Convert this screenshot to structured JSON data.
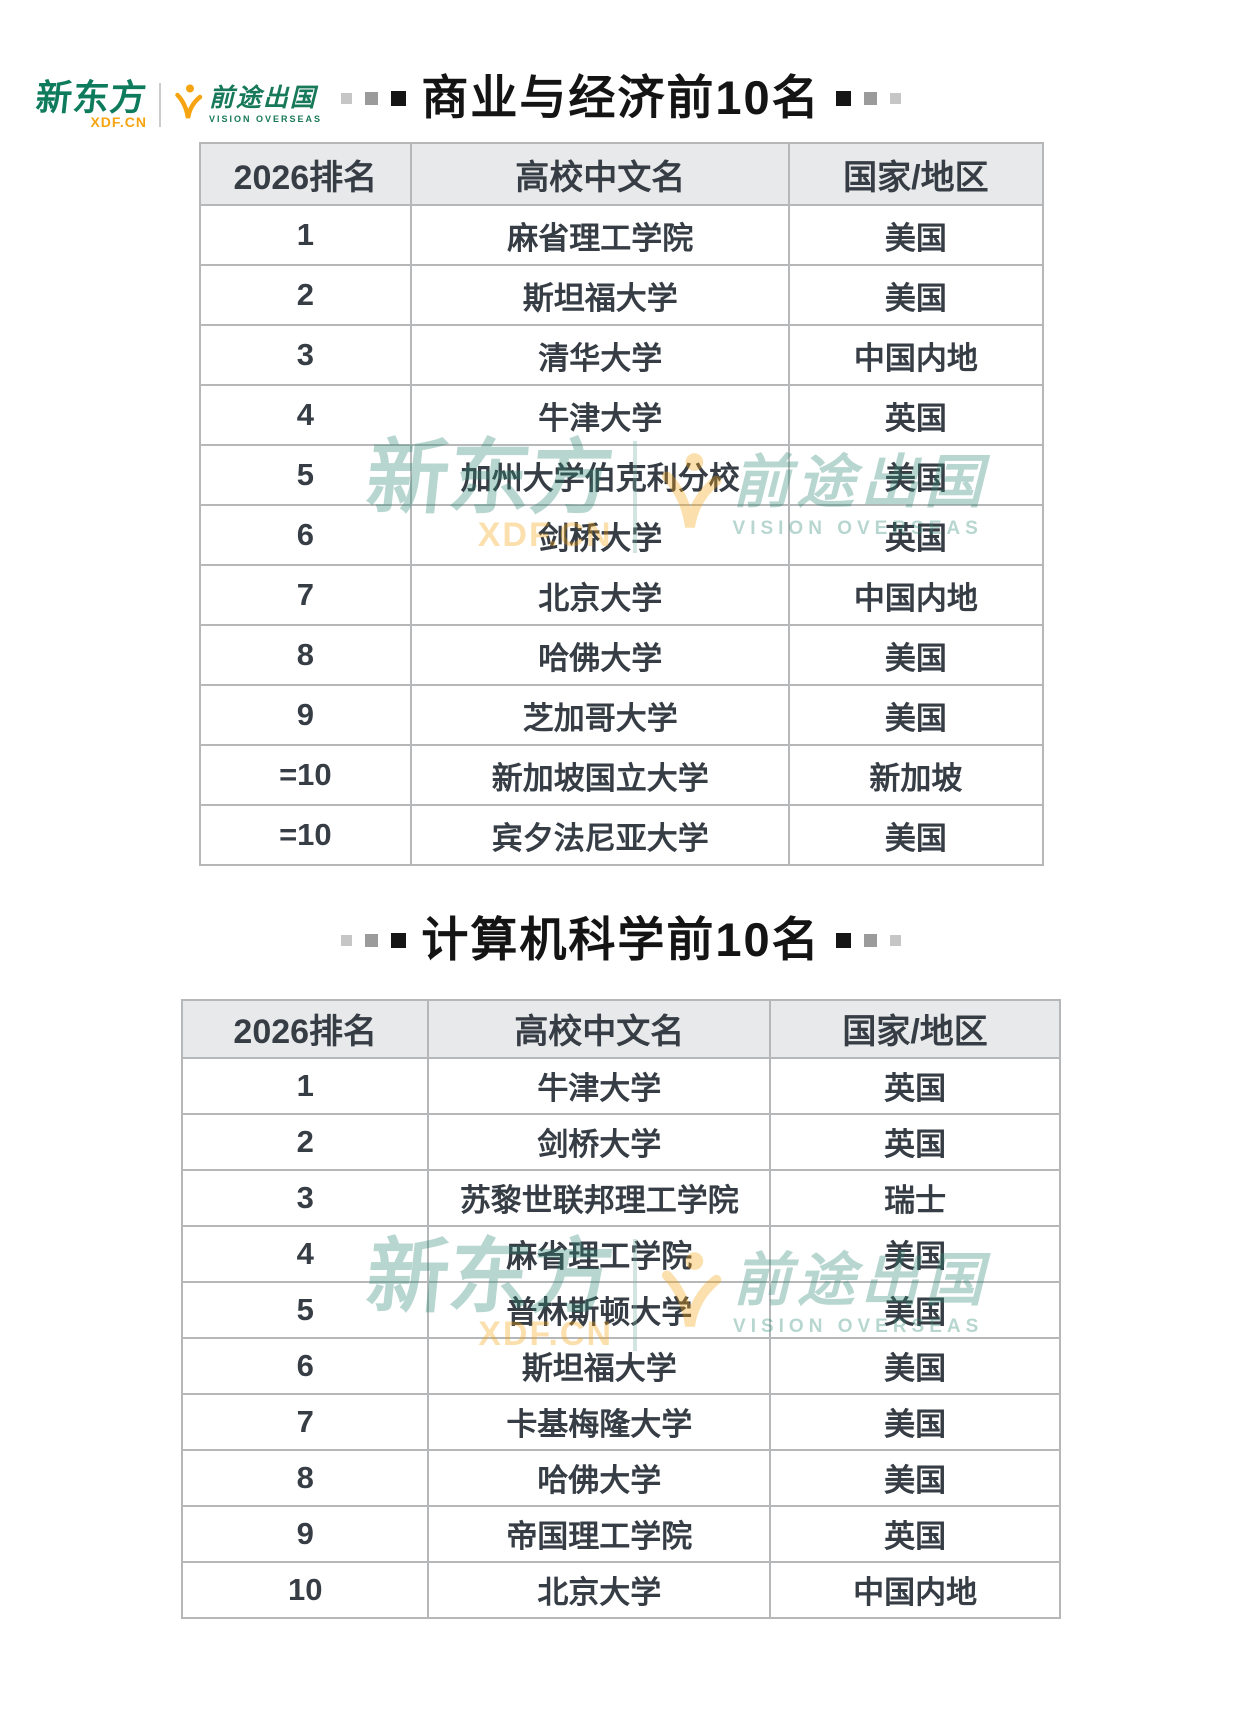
{
  "logo": {
    "brand": "新东方",
    "brand_sub": "XDF.CN",
    "partner": "前途出国",
    "partner_sub": "VISION OVERSEAS"
  },
  "colors": {
    "brand_green": "#0e7c5c",
    "brand_orange": "#f6a411",
    "header_bg": "#e8e9ea",
    "table_text": "#373d45",
    "table_border": "#b5b7b8",
    "title_text": "#141414"
  },
  "tables": [
    {
      "title": "商业与经济前10名",
      "columns": [
        "2026排名",
        "高校中文名",
        "国家/地区"
      ],
      "rows": [
        [
          "1",
          "麻省理工学院",
          "美国"
        ],
        [
          "2",
          "斯坦福大学",
          "美国"
        ],
        [
          "3",
          "清华大学",
          "中国内地"
        ],
        [
          "4",
          "牛津大学",
          "英国"
        ],
        [
          "5",
          "加州大学伯克利分校",
          "美国"
        ],
        [
          "6",
          "剑桥大学",
          "英国"
        ],
        [
          "7",
          "北京大学",
          "中国内地"
        ],
        [
          "8",
          "哈佛大学",
          "美国"
        ],
        [
          "9",
          "芝加哥大学",
          "美国"
        ],
        [
          "=10",
          "新加坡国立大学",
          "新加坡"
        ],
        [
          "=10",
          "宾夕法尼亚大学",
          "美国"
        ]
      ]
    },
    {
      "title": "计算机科学前10名",
      "columns": [
        "2026排名",
        "高校中文名",
        "国家/地区"
      ],
      "rows": [
        [
          "1",
          "牛津大学",
          "英国"
        ],
        [
          "2",
          "剑桥大学",
          "英国"
        ],
        [
          "3",
          "苏黎世联邦理工学院",
          "瑞士"
        ],
        [
          "4",
          "麻省理工学院",
          "美国"
        ],
        [
          "5",
          "普林斯顿大学",
          "美国"
        ],
        [
          "6",
          "斯坦福大学",
          "美国"
        ],
        [
          "7",
          "卡基梅隆大学",
          "美国"
        ],
        [
          "8",
          "哈佛大学",
          "美国"
        ],
        [
          "9",
          "帝国理工学院",
          "英国"
        ],
        [
          "10",
          "北京大学",
          "中国内地"
        ]
      ]
    }
  ]
}
